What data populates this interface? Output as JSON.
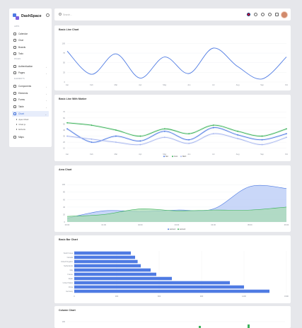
{
  "app": {
    "name": "DashSpace"
  },
  "sidebar": {
    "sections": [
      {
        "title": "APPS",
        "items": [
          {
            "label": "Calendar",
            "icon": "calendar-icon"
          },
          {
            "label": "Chat",
            "icon": "chat-icon"
          },
          {
            "label": "Boards",
            "icon": "boards-icon"
          },
          {
            "label": "Todo",
            "icon": "todo-icon"
          }
        ]
      },
      {
        "title": "PAGES",
        "items": [
          {
            "label": "Authentication",
            "icon": "lock-icon",
            "chevron": true
          },
          {
            "label": "Pages",
            "icon": "pages-icon",
            "chevron": true
          }
        ]
      },
      {
        "title": "ELEMENTS",
        "items": [
          {
            "label": "Components",
            "icon": "components-icon",
            "chevron": true
          },
          {
            "label": "Elements",
            "icon": "elements-icon",
            "chevron": true
          },
          {
            "label": "Forms",
            "icon": "forms-icon",
            "chevron": true
          },
          {
            "label": "Table",
            "icon": "table-icon",
            "chevron": true
          },
          {
            "label": "Chart",
            "icon": "chart-icon",
            "chevron": true,
            "active": true
          }
        ]
      }
    ],
    "chart_sub": [
      "Apex Chart",
      "Chart.js",
      "Echarts"
    ],
    "maps": {
      "label": "Maps",
      "icon": "map-icon"
    }
  },
  "topbar": {
    "search_placeholder": "Search..."
  },
  "cards": {
    "line": "Basic Line Chart",
    "marker": "Basic Line With Marker",
    "area": "Area Chart",
    "bar": "Basic Bar Chart",
    "column": "Column Chart"
  },
  "chart_data": [
    {
      "type": "line",
      "title": "Basic Line Chart",
      "categories": [
        "Jan",
        "Feb",
        "Mar",
        "Apr",
        "May",
        "Jun",
        "Jul",
        "Aug",
        "Sep",
        "Oct"
      ],
      "yticks": [
        100,
        75,
        50,
        25,
        0
      ],
      "ylim": [
        0,
        110
      ],
      "series": [
        {
          "color": "#4f7be3",
          "values": [
            80,
            20,
            73,
            10,
            65,
            22,
            88,
            40,
            8,
            65
          ]
        }
      ]
    },
    {
      "type": "line",
      "title": "Basic Line With Marker",
      "categories": [
        "Jan",
        "Feb",
        "Mar",
        "Apr",
        "May",
        "Jun",
        "Jul",
        "Aug",
        "Sep",
        "Oct"
      ],
      "yticks": [
        70,
        60,
        50,
        40,
        30,
        20,
        10
      ],
      "ylim": [
        5,
        75
      ],
      "series": [
        {
          "name": "Net",
          "color": "#4f7be3",
          "values": [
            42,
            20,
            30,
            22,
            38,
            24,
            44,
            32,
            24,
            34
          ]
        },
        {
          "name": "Cost",
          "color": "#3cb25a",
          "values": [
            52,
            48,
            40,
            30,
            42,
            34,
            48,
            38,
            30,
            42
          ]
        },
        {
          "name": "SEO",
          "color": "#a7b6ef",
          "values": [
            30,
            25,
            20,
            16,
            28,
            18,
            34,
            26,
            16,
            28
          ]
        }
      ],
      "legend": "bottom-center"
    },
    {
      "type": "area",
      "title": "Area Chart",
      "categories": [
        "00:00",
        "01:00",
        "02:00",
        "03:00",
        "04:00",
        "05:00",
        "06:00"
      ],
      "yticks": [
        100,
        80,
        60,
        40,
        20,
        0
      ],
      "ylim": [
        0,
        110
      ],
      "series": [
        {
          "name": "series1",
          "color": "#4f7be3",
          "values": [
            10,
            30,
            28,
            32,
            35,
            95,
            90
          ]
        },
        {
          "name": "series2",
          "color": "#3cb25a",
          "values": [
            15,
            20,
            35,
            30,
            32,
            32,
            40
          ]
        }
      ],
      "legend": "bottom-center"
    },
    {
      "type": "bar",
      "title": "Basic Bar Chart",
      "categories": [
        "South Korea",
        "Canada",
        "United Kingdom",
        "Netherlands",
        "Italy",
        "France",
        "Japan",
        "United States",
        "China",
        "Germany"
      ],
      "values": [
        400,
        430,
        448,
        470,
        540,
        580,
        690,
        1100,
        1200,
        1380
      ],
      "xticks": [
        0,
        300,
        600,
        900,
        1200,
        1500
      ],
      "xlim": [
        0,
        1500
      ]
    },
    {
      "type": "bar",
      "title": "Column Chart",
      "yticks": [
        100
      ],
      "ylim": [
        0,
        110
      ]
    }
  ]
}
